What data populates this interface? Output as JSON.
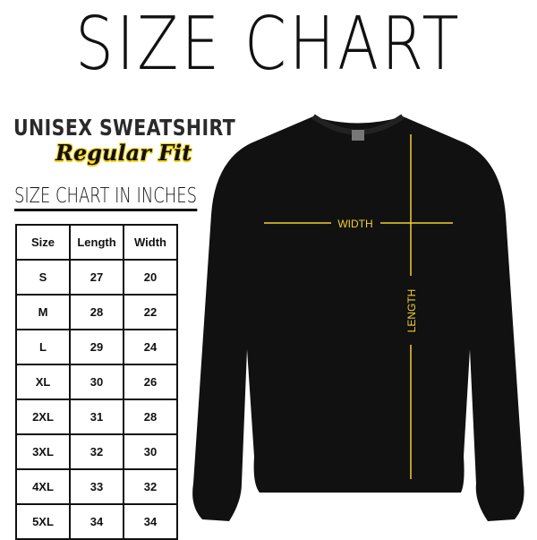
{
  "title": "SIZE CHART",
  "product": "UNISEX SWEATSHIRT",
  "fit": "Regular Fit",
  "chart_heading": "SIZE CHART IN INCHES",
  "table": {
    "headers": [
      "Size",
      "Length",
      "Width"
    ],
    "rows": [
      [
        "S",
        "27",
        "20"
      ],
      [
        "M",
        "28",
        "22"
      ],
      [
        "L",
        "29",
        "24"
      ],
      [
        "XL",
        "30",
        "26"
      ],
      [
        "2XL",
        "31",
        "28"
      ],
      [
        "3XL",
        "32",
        "30"
      ],
      [
        "4XL",
        "33",
        "32"
      ],
      [
        "5XL",
        "34",
        "34"
      ]
    ]
  },
  "measure_labels": {
    "width": "WIDTH",
    "length": "LENGTH"
  },
  "colors": {
    "garment": "#111111",
    "measure_line": "#f2cf2b",
    "accent": "#f6d21a"
  }
}
